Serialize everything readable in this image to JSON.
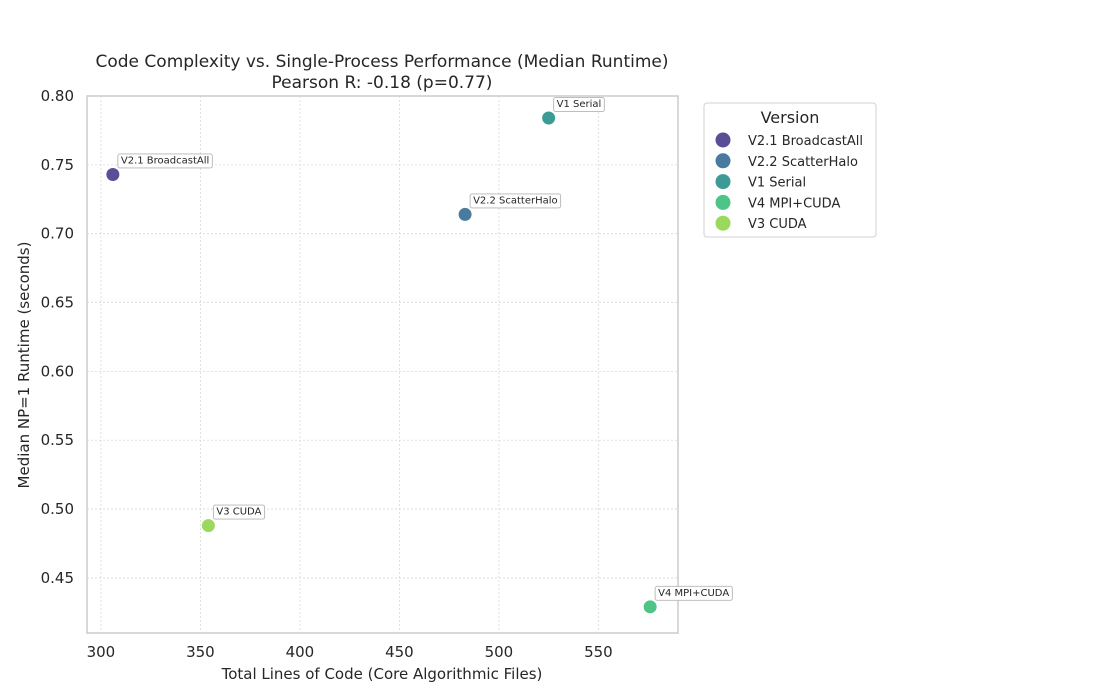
{
  "chart_data": {
    "type": "scatter",
    "title": "Code Complexity vs. Single-Process Performance (Median Runtime)",
    "subtitle": "Pearson R: -0.18 (p=0.77)",
    "xlabel": "Total Lines of Code (Core Algorithmic Files)",
    "ylabel": "Median NP=1 Runtime (seconds)",
    "xlim": [
      293,
      590
    ],
    "ylim": [
      0.41,
      0.8
    ],
    "xticks": [
      "300",
      "350",
      "400",
      "450",
      "500",
      "550"
    ],
    "yticks": [
      "0.45",
      "0.50",
      "0.55",
      "0.60",
      "0.65",
      "0.70",
      "0.75",
      "0.80"
    ],
    "grid": true,
    "legend": {
      "title": "Version",
      "position": "outside right"
    },
    "series": [
      {
        "name": "V2.1 BroadcastAll",
        "color": "#5a4f96",
        "x": 306,
        "y": 0.743
      },
      {
        "name": "V2.2 ScatterHalo",
        "color": "#487b9d",
        "x": 483,
        "y": 0.714
      },
      {
        "name": "V1 Serial",
        "color": "#3c9c95",
        "x": 525,
        "y": 0.784
      },
      {
        "name": "V4 MPI+CUDA",
        "color": "#4fc487",
        "x": 576,
        "y": 0.429
      },
      {
        "name": "V3 CUDA",
        "color": "#9bd95c",
        "x": 354,
        "y": 0.488
      }
    ]
  }
}
